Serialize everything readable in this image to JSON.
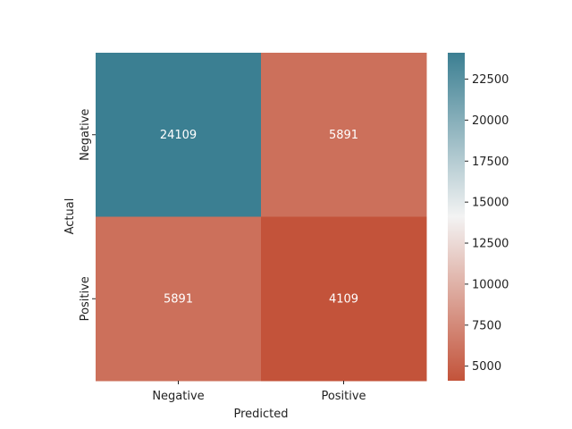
{
  "chart_data": {
    "type": "heatmap",
    "x_categories": [
      "Negative",
      "Positive"
    ],
    "y_categories": [
      "Negative",
      "Positive"
    ],
    "values": [
      [
        24109,
        5891
      ],
      [
        5891,
        4109
      ]
    ],
    "xlabel": "Predicted",
    "ylabel": "Actual",
    "colorbar": {
      "range": [
        4109,
        24109
      ],
      "ticks": [
        5000,
        7500,
        10000,
        12500,
        15000,
        17500,
        20000,
        22500
      ],
      "low_color": "#c3533a",
      "mid_color": "#f3f3f3",
      "high_color": "#3b7f92"
    }
  }
}
